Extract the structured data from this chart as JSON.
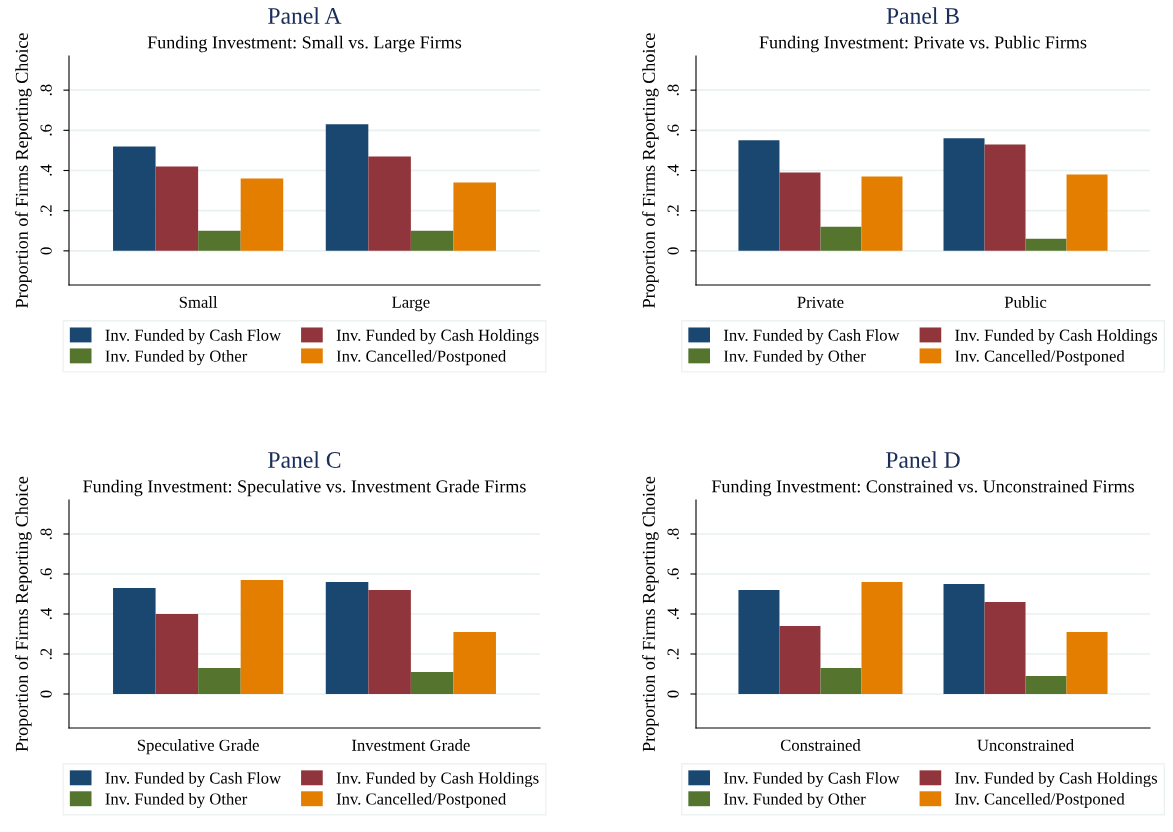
{
  "chart_data": [
    {
      "type": "bar",
      "title": "Panel A",
      "subtitle": "Funding Investment: Small vs. Large Firms",
      "ylabel": "Proportion of Firms Reporting Choice",
      "categories": [
        "Small",
        "Large"
      ],
      "series": [
        {
          "name": "Inv. Funded by Cash Flow",
          "color": "#1a476f",
          "values": [
            0.52,
            0.63
          ]
        },
        {
          "name": "Inv. Funded by Cash Holdings",
          "color": "#90353b",
          "values": [
            0.42,
            0.47
          ]
        },
        {
          "name": "Inv. Funded by Other",
          "color": "#55752f",
          "values": [
            0.1,
            0.1
          ]
        },
        {
          "name": "Inv. Cancelled/Postponed",
          "color": "#e37e00",
          "values": [
            0.36,
            0.34
          ]
        }
      ],
      "ylim": [
        -0.17,
        0.97
      ],
      "yticks": [
        0,
        {
          "value": 0.2,
          "label": ".2"
        },
        {
          "value": 0.4,
          "label": ".4"
        },
        {
          "value": 0.6,
          "label": ".6"
        },
        {
          "value": 0.8,
          "label": ".8"
        }
      ],
      "grid": "y",
      "legend": "bottom"
    },
    {
      "type": "bar",
      "title": "Panel B",
      "subtitle": "Funding Investment: Private vs. Public Firms",
      "ylabel": "Proportion of Firms Reporting Choice",
      "categories": [
        "Private",
        "Public"
      ],
      "series": [
        {
          "name": "Inv. Funded by Cash Flow",
          "color": "#1a476f",
          "values": [
            0.55,
            0.56
          ]
        },
        {
          "name": "Inv. Funded by Cash Holdings",
          "color": "#90353b",
          "values": [
            0.39,
            0.53
          ]
        },
        {
          "name": "Inv. Funded by Other",
          "color": "#55752f",
          "values": [
            0.12,
            0.06
          ]
        },
        {
          "name": "Inv. Cancelled/Postponed",
          "color": "#e37e00",
          "values": [
            0.37,
            0.38
          ]
        }
      ],
      "ylim": [
        -0.17,
        0.97
      ],
      "yticks": [
        0,
        {
          "value": 0.2,
          "label": ".2"
        },
        {
          "value": 0.4,
          "label": ".4"
        },
        {
          "value": 0.6,
          "label": ".6"
        },
        {
          "value": 0.8,
          "label": ".8"
        }
      ],
      "grid": "y",
      "legend": "bottom"
    },
    {
      "type": "bar",
      "title": "Panel C",
      "subtitle": "Funding Investment: Speculative vs. Investment Grade Firms",
      "ylabel": "Proportion of Firms Reporting Choice",
      "categories": [
        "Speculative Grade",
        "Investment Grade"
      ],
      "series": [
        {
          "name": "Inv. Funded by Cash Flow",
          "color": "#1a476f",
          "values": [
            0.53,
            0.56
          ]
        },
        {
          "name": "Inv. Funded by Cash Holdings",
          "color": "#90353b",
          "values": [
            0.4,
            0.52
          ]
        },
        {
          "name": "Inv. Funded by Other",
          "color": "#55752f",
          "values": [
            0.13,
            0.11
          ]
        },
        {
          "name": "Inv. Cancelled/Postponed",
          "color": "#e37e00",
          "values": [
            0.57,
            0.31
          ]
        }
      ],
      "ylim": [
        -0.17,
        0.97
      ],
      "yticks": [
        0,
        {
          "value": 0.2,
          "label": ".2"
        },
        {
          "value": 0.4,
          "label": ".4"
        },
        {
          "value": 0.6,
          "label": ".6"
        },
        {
          "value": 0.8,
          "label": ".8"
        }
      ],
      "grid": "y",
      "legend": "bottom"
    },
    {
      "type": "bar",
      "title": "Panel D",
      "subtitle": "Funding Investment: Constrained vs. Unconstrained Firms",
      "ylabel": "Proportion of Firms Reporting Choice",
      "categories": [
        "Constrained",
        "Unconstrained"
      ],
      "series": [
        {
          "name": "Inv. Funded by Cash Flow",
          "color": "#1a476f",
          "values": [
            0.52,
            0.55
          ]
        },
        {
          "name": "Inv. Funded by Cash Holdings",
          "color": "#90353b",
          "values": [
            0.34,
            0.46
          ]
        },
        {
          "name": "Inv. Funded by Other",
          "color": "#55752f",
          "values": [
            0.13,
            0.09
          ]
        },
        {
          "name": "Inv. Cancelled/Postponed",
          "color": "#e37e00",
          "values": [
            0.56,
            0.31
          ]
        }
      ],
      "ylim": [
        -0.17,
        0.97
      ],
      "yticks": [
        0,
        {
          "value": 0.2,
          "label": ".2"
        },
        {
          "value": 0.4,
          "label": ".4"
        },
        {
          "value": 0.6,
          "label": ".6"
        },
        {
          "value": 0.8,
          "label": ".8"
        }
      ],
      "grid": "y",
      "legend": "bottom"
    }
  ]
}
